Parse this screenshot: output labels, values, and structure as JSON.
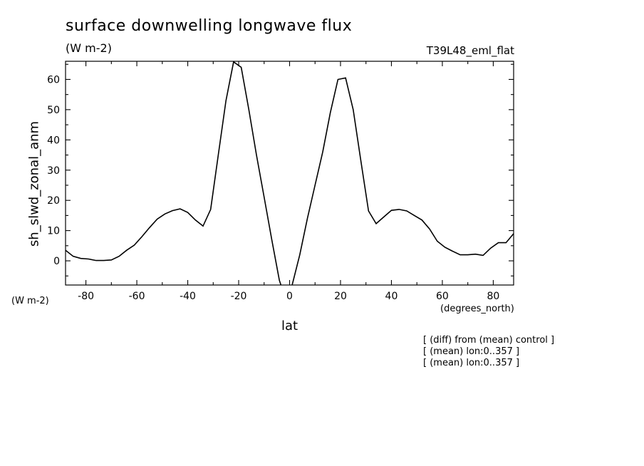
{
  "header": {
    "title": "surface downwelling longwave flux",
    "units": "(W m-2)",
    "run_id": "T39L48_eml_flat"
  },
  "side_units": "(W m-2)",
  "notes": [
    "[ (diff) from (mean) control ]",
    "[ (mean) lon:0..357 ]",
    "[ (mean) lon:0..357 ]"
  ],
  "chart_data": {
    "type": "line",
    "title": "surface downwelling longwave flux",
    "xlabel": "lat",
    "xunits": "(degrees_north)",
    "ylabel": "sh_slwd_zonal_anm",
    "xlim": [
      -88,
      88
    ],
    "ylim": [
      -8,
      66
    ],
    "xticks": [
      -80,
      -60,
      -40,
      -20,
      0,
      20,
      40,
      60,
      80
    ],
    "xtick_labels": [
      "-80",
      "-60",
      "-40",
      "-20",
      "0",
      "20",
      "40",
      "60",
      "80"
    ],
    "yticks": [
      0,
      10,
      20,
      30,
      40,
      50,
      60
    ],
    "ytick_labels": [
      "0",
      "10",
      "20",
      "30",
      "40",
      "50",
      "60"
    ],
    "grid": false,
    "series": [
      {
        "color": "#000000",
        "x": [
          -88,
          -85,
          -82,
          -79,
          -76,
          -73,
          -70,
          -67,
          -64,
          -61,
          -58,
          -55,
          -52,
          -49,
          -46,
          -43,
          -40,
          -37,
          -34,
          -31,
          -28,
          -25,
          -22,
          -19,
          -16,
          -13,
          -10,
          -7,
          -4,
          -1,
          1,
          4,
          7,
          10,
          13,
          16,
          19,
          22,
          25,
          28,
          31,
          34,
          37,
          40,
          43,
          46,
          49,
          52,
          55,
          58,
          61,
          64,
          67,
          70,
          73,
          76,
          79,
          82,
          85,
          88
        ],
        "y": [
          3.5,
          1.5,
          0.8,
          0.6,
          0.1,
          0.1,
          0.3,
          1.5,
          3.5,
          5.2,
          8.0,
          11.0,
          13.8,
          15.5,
          16.6,
          17.2,
          16.0,
          13.5,
          11.5,
          17.0,
          35.0,
          53.0,
          65.8,
          64.0,
          50.0,
          35.0,
          21.0,
          7.0,
          -6.5,
          -14.0,
          -8.0,
          2.0,
          14.0,
          25.0,
          36.0,
          49.0,
          60.0,
          60.5,
          50.0,
          33.0,
          16.5,
          12.3,
          14.5,
          16.7,
          17.0,
          16.5,
          15.0,
          13.5,
          10.5,
          6.5,
          4.5,
          3.2,
          2.0,
          2.0,
          2.2,
          1.8,
          4.2,
          6.0,
          6.0,
          9.0
        ]
      }
    ]
  }
}
